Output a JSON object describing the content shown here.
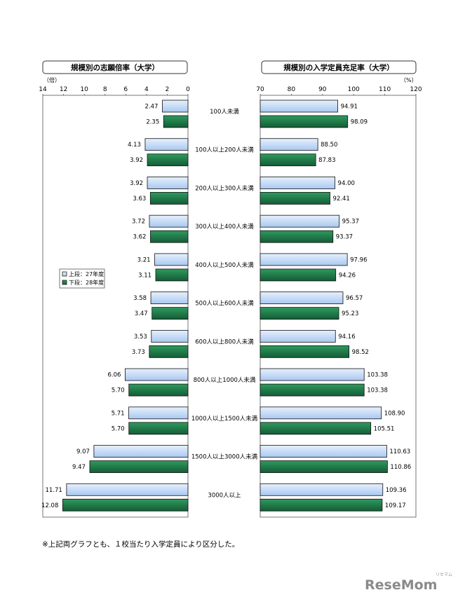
{
  "chart_data": [
    {
      "type": "bar",
      "orientation": "horizontal",
      "title": "規模別の志願倍率（大学）",
      "unit_label": "（倍）",
      "reversed_axis": true,
      "xlim": [
        0,
        14
      ],
      "ticks": [
        "14",
        "12",
        "10",
        "8",
        "6",
        "4",
        "2",
        "0"
      ],
      "grid": false,
      "categories": [
        "100人未満",
        "100人以上200人未満",
        "200人以上300人未満",
        "300人以上400人未満",
        "400人以上500人未満",
        "500人以上600人未満",
        "600人以上800人未満",
        "800人以上1000人未満",
        "1000人以上1500人未満",
        "1500人以上3000人未満",
        "3000人以上"
      ],
      "series": [
        {
          "name": "上段：27年度",
          "color": "#cfe2fb",
          "values": [
            2.47,
            4.13,
            3.92,
            3.72,
            3.21,
            3.58,
            3.53,
            6.06,
            5.71,
            9.07,
            11.71
          ],
          "labels": [
            "2.47",
            "4.13",
            "3.92",
            "3.72",
            "3.21",
            "3.58",
            "3.53",
            "6.06",
            "5.71",
            "9.07",
            "11.71"
          ]
        },
        {
          "name": "下段：28年度",
          "color": "#1e7a4a",
          "values": [
            2.35,
            3.92,
            3.63,
            3.62,
            3.11,
            3.47,
            3.73,
            5.7,
            5.7,
            9.47,
            12.08
          ],
          "labels": [
            "2.35",
            "3.92",
            "3.63",
            "3.62",
            "3.11",
            "3.47",
            "3.73",
            "5.70",
            "5.70",
            "9.47",
            "12.08"
          ]
        }
      ],
      "legend_position": "left"
    },
    {
      "type": "bar",
      "orientation": "horizontal",
      "title": "規模別の入学定員充足率（大学）",
      "unit_label": "（%）",
      "xlim": [
        70,
        120
      ],
      "ticks": [
        "70",
        "80",
        "90",
        "100",
        "110",
        "120"
      ],
      "grid": false,
      "series": [
        {
          "name": "上段：27年度",
          "color": "#cfe2fb",
          "values": [
            94.91,
            88.5,
            94.0,
            95.37,
            97.96,
            96.57,
            94.16,
            103.38,
            108.9,
            110.63,
            109.36
          ],
          "labels": [
            "94.91",
            "88.50",
            "94.00",
            "95.37",
            "97.96",
            "96.57",
            "94.16",
            "103.38",
            "108.90",
            "110.63",
            "109.36"
          ]
        },
        {
          "name": "下段：28年度",
          "color": "#1e7a4a",
          "values": [
            98.09,
            87.83,
            92.41,
            93.37,
            94.26,
            95.23,
            98.52,
            103.38,
            105.51,
            110.86,
            109.17
          ],
          "labels": [
            "98.09",
            "87.83",
            "92.41",
            "93.37",
            "94.26",
            "95.23",
            "98.52",
            "103.38",
            "105.51",
            "110.86",
            "109.17"
          ]
        }
      ]
    }
  ],
  "legend": {
    "items": [
      "上段：27年度",
      "下段：28年度"
    ]
  },
  "note": "※上記両グラフとも、１校当たり入学定員により区分した。",
  "watermark": {
    "text": "ReseMom",
    "small": "リセマム"
  }
}
